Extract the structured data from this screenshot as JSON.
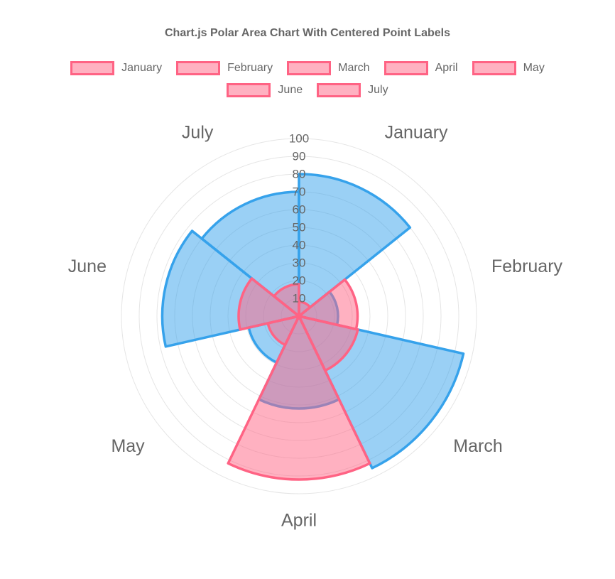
{
  "title": "Chart.js Polar Area Chart With Centered Point Labels",
  "legend": {
    "position": "top",
    "items": [
      "January",
      "February",
      "March",
      "April",
      "May",
      "June",
      "July"
    ]
  },
  "chart_data": {
    "type": "polarArea",
    "categories": [
      "January",
      "February",
      "March",
      "April",
      "May",
      "June",
      "July"
    ],
    "series": [
      {
        "border_color": "#FF6384",
        "background_color": "rgba(255, 99, 132, 0.5)",
        "values": [
          8,
          33,
          34,
          92,
          18,
          34,
          18
        ]
      },
      {
        "border_color": "#36A2EB",
        "background_color": "rgba(54, 162, 235, 0.5)",
        "values": [
          80,
          22,
          95,
          52,
          29,
          77,
          70
        ]
      }
    ],
    "axis": {
      "min": 0,
      "max": 100,
      "ticks": [
        10,
        20,
        30,
        40,
        50,
        60,
        70,
        80,
        90,
        100
      ],
      "grid_color": "#e5e5e5",
      "tick_color": "#666666"
    },
    "start_angle_deg": -90,
    "point_label_color": "#666666",
    "legend_position": "top",
    "grid": true
  }
}
